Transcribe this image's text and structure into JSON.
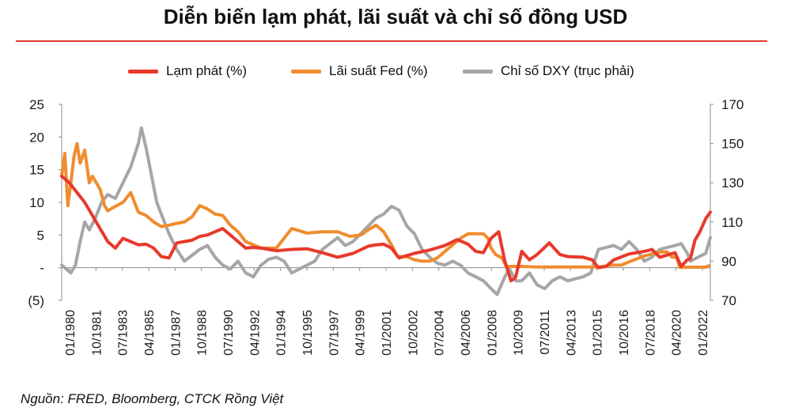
{
  "title": "Diễn biến lạm phát, lãi suất và chỉ số đồng USD",
  "source": "Nguồn: FRED, Bloomberg, CTCK Rồng Việt",
  "colors": {
    "inflation": "#e8392b",
    "fed": "#f08c2e",
    "dxy": "#a6a6a6",
    "rule": "#e03a2f"
  },
  "legend": [
    {
      "label": "Lạm phát (%)",
      "color": "#e8392b"
    },
    {
      "label": "Lãi suất Fed (%)",
      "color": "#f08c2e"
    },
    {
      "label": "Chỉ số DXY (trục phải)",
      "color": "#a6a6a6"
    }
  ],
  "chart_data": {
    "type": "line",
    "x_tick_labels": [
      "01/1980",
      "10/1981",
      "07/1983",
      "04/1985",
      "01/1987",
      "10/1988",
      "07/1990",
      "04/1992",
      "01/1994",
      "10/1995",
      "07/1997",
      "04/1999",
      "01/2001",
      "10/2002",
      "07/2004",
      "04/2006",
      "01/2008",
      "10/2009",
      "07/2011",
      "04/2013",
      "01/2015",
      "10/2016",
      "07/2018",
      "04/2020",
      "01/2022"
    ],
    "y_left": {
      "range": [
        -5,
        25
      ],
      "ticks": [
        25,
        20,
        15,
        10,
        5,
        0,
        -5
      ],
      "tick_labels": [
        "25",
        "20",
        "15",
        "10",
        "5",
        "-",
        "(5)"
      ]
    },
    "y_right": {
      "range": [
        70,
        170
      ],
      "ticks": [
        170,
        150,
        130,
        110,
        90,
        70
      ],
      "tick_labels": [
        "170",
        "150",
        "130",
        "110",
        "90",
        "70"
      ]
    },
    "grid": false,
    "legend_position": "top",
    "series": [
      {
        "name": "Lạm phát (%)",
        "axis": "left",
        "x": [
          1980.0,
          1980.5,
          1981.0,
          1981.5,
          1982.0,
          1982.5,
          1983.0,
          1983.5,
          1984.0,
          1984.5,
          1985.0,
          1985.5,
          1986.0,
          1986.5,
          1987.0,
          1987.5,
          1988.0,
          1988.5,
          1989.0,
          1989.5,
          1990.0,
          1990.5,
          1991.0,
          1991.5,
          1992.0,
          1992.5,
          1993.0,
          1994.0,
          1995.0,
          1996.0,
          1997.0,
          1998.0,
          1999.0,
          2000.0,
          2000.5,
          2001.0,
          2001.5,
          2002.0,
          2003.0,
          2004.0,
          2005.0,
          2005.8,
          2006.5,
          2007.0,
          2007.5,
          2008.0,
          2008.5,
          2008.9,
          2009.3,
          2009.6,
          2010.0,
          2010.5,
          2011.0,
          2011.8,
          2012.5,
          2013.0,
          2014.0,
          2014.6,
          2015.0,
          2015.5,
          2016.0,
          2017.0,
          2018.0,
          2018.5,
          2019.0,
          2020.0,
          2020.4,
          2020.8,
          2021.0,
          2021.3,
          2021.6,
          2022.0,
          2022.3
        ],
        "values": [
          14.0,
          13.0,
          11.5,
          10.0,
          8.0,
          6.0,
          4.0,
          3.0,
          4.5,
          4.0,
          3.5,
          3.6,
          3.0,
          1.7,
          1.5,
          3.8,
          4.0,
          4.2,
          4.8,
          5.0,
          5.5,
          6.0,
          5.0,
          4.0,
          3.0,
          3.1,
          3.0,
          2.6,
          2.8,
          2.9,
          2.3,
          1.6,
          2.2,
          3.3,
          3.5,
          3.6,
          3.0,
          1.5,
          2.2,
          2.7,
          3.4,
          4.3,
          3.6,
          2.5,
          2.3,
          4.5,
          5.5,
          1.0,
          -2.0,
          -1.5,
          2.5,
          1.2,
          2.0,
          3.8,
          2.0,
          1.7,
          1.6,
          1.2,
          0.0,
          0.2,
          1.2,
          2.1,
          2.5,
          2.8,
          1.6,
          2.3,
          0.2,
          1.2,
          1.4,
          4.2,
          5.4,
          7.5,
          8.5
        ]
      },
      {
        "name": "Lãi suất Fed (%)",
        "axis": "left",
        "x": [
          1980.0,
          1980.2,
          1980.4,
          1980.6,
          1980.8,
          1981.0,
          1981.2,
          1981.5,
          1981.8,
          1982.0,
          1982.5,
          1982.8,
          1983.0,
          1983.5,
          1984.0,
          1984.5,
          1985.0,
          1985.5,
          1986.0,
          1986.5,
          1987.0,
          1987.5,
          1988.0,
          1988.5,
          1989.0,
          1989.5,
          1990.0,
          1990.5,
          1991.0,
          1991.5,
          1992.0,
          1993.0,
          1994.0,
          1994.5,
          1995.0,
          1996.0,
          1997.0,
          1998.0,
          1998.8,
          1999.5,
          2000.0,
          2000.5,
          2001.0,
          2001.5,
          2001.9,
          2002.5,
          2003.0,
          2003.5,
          2004.0,
          2004.5,
          2005.0,
          2005.5,
          2006.0,
          2006.5,
          2007.0,
          2007.5,
          2007.8,
          2008.0,
          2008.3,
          2008.7,
          2009.0,
          2010.0,
          2011.0,
          2012.0,
          2013.0,
          2014.0,
          2015.0,
          2015.9,
          2016.5,
          2017.0,
          2018.0,
          2018.8,
          2019.0,
          2019.5,
          2019.8,
          2020.1,
          2020.3,
          2021.0,
          2022.0,
          2022.2
        ],
        "values": [
          14.0,
          17.5,
          9.5,
          13.0,
          17.0,
          19.0,
          16.0,
          18.0,
          13.0,
          14.0,
          12.0,
          9.5,
          8.7,
          9.4,
          10.0,
          11.5,
          8.5,
          8.0,
          7.0,
          6.3,
          6.5,
          6.8,
          7.0,
          7.8,
          9.5,
          9.0,
          8.2,
          8.0,
          6.5,
          5.5,
          4.0,
          3.0,
          3.0,
          4.5,
          6.0,
          5.3,
          5.5,
          5.5,
          4.8,
          5.0,
          5.8,
          6.5,
          5.5,
          3.5,
          1.7,
          1.7,
          1.2,
          1.0,
          1.0,
          1.5,
          2.5,
          3.5,
          4.5,
          5.2,
          5.2,
          5.2,
          4.5,
          3.0,
          2.0,
          1.5,
          0.2,
          0.2,
          0.1,
          0.1,
          0.1,
          0.1,
          0.1,
          0.4,
          0.4,
          0.9,
          1.8,
          2.3,
          2.4,
          2.4,
          1.6,
          1.6,
          0.05,
          0.08,
          0.08,
          0.3
        ]
      },
      {
        "name": "Chỉ số DXY (trục phải)",
        "axis": "right",
        "x": [
          1980.0,
          1980.3,
          1980.6,
          1980.9,
          1981.2,
          1981.5,
          1981.8,
          1982.2,
          1982.6,
          1983.0,
          1983.5,
          1984.0,
          1984.5,
          1985.0,
          1985.2,
          1985.5,
          1985.8,
          1986.2,
          1986.6,
          1987.0,
          1987.5,
          1988.0,
          1988.5,
          1989.0,
          1989.5,
          1990.0,
          1990.5,
          1991.0,
          1991.5,
          1992.0,
          1992.5,
          1993.0,
          1993.5,
          1994.0,
          1994.5,
          1995.0,
          1995.5,
          1996.0,
          1996.5,
          1997.0,
          1997.5,
          1998.0,
          1998.5,
          1999.0,
          1999.5,
          2000.0,
          2000.5,
          2001.0,
          2001.5,
          2002.0,
          2002.5,
          2003.0,
          2003.5,
          2004.0,
          2004.5,
          2005.0,
          2005.5,
          2006.0,
          2006.5,
          2007.0,
          2007.5,
          2008.0,
          2008.4,
          2008.9,
          2009.2,
          2009.6,
          2010.0,
          2010.5,
          2011.0,
          2011.5,
          2012.0,
          2012.5,
          2013.0,
          2013.5,
          2014.0,
          2014.5,
          2015.0,
          2015.5,
          2016.0,
          2016.5,
          2017.0,
          2017.5,
          2018.0,
          2018.5,
          2019.0,
          2019.5,
          2020.0,
          2020.4,
          2020.8,
          2021.0,
          2021.5,
          2022.0,
          2022.3
        ],
        "values": [
          88,
          86,
          84,
          88,
          100,
          110,
          106,
          112,
          120,
          124,
          122,
          130,
          138,
          150,
          158,
          148,
          136,
          120,
          112,
          104,
          96,
          90,
          93,
          96,
          98,
          92,
          88,
          86,
          90,
          84,
          82,
          88,
          91,
          92,
          90,
          84,
          86,
          88,
          90,
          96,
          99,
          102,
          98,
          100,
          104,
          108,
          112,
          114,
          118,
          116,
          108,
          104,
          96,
          92,
          89,
          88,
          90,
          88,
          84,
          82,
          80,
          76,
          73,
          82,
          86,
          80,
          80,
          84,
          78,
          76,
          80,
          82,
          80,
          81,
          82,
          84,
          96,
          97,
          98,
          96,
          100,
          96,
          90,
          92,
          96,
          97,
          98,
          99,
          94,
          90,
          92,
          94,
          102
        ]
      }
    ]
  }
}
